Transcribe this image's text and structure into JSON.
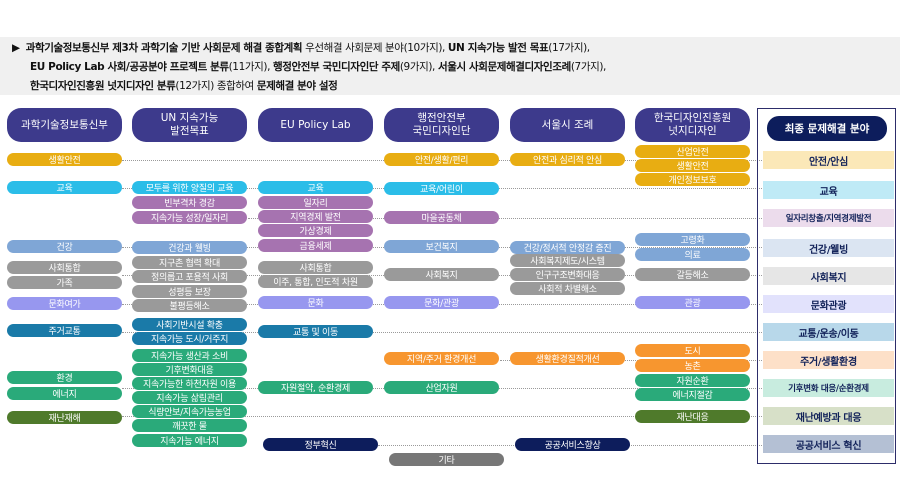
{
  "intro": {
    "bullet": "▶",
    "lines": [
      [
        {
          "t": "과학기술정보통신부 제3차 과학기술 기반 사회문제 해결 종합계획",
          "b": true
        },
        {
          "t": " 우선해결 사회문제 분야(10가지), ",
          "b": false
        },
        {
          "t": "UN 지속가능 발전 목표",
          "b": true
        },
        {
          "t": "(17가지),",
          "b": false
        }
      ],
      [
        {
          "t": "EU Policy Lab 사회/공공분야 프로젝트 분류",
          "b": true
        },
        {
          "t": "(11가지), ",
          "b": false
        },
        {
          "t": "행정안전부 국민디자인단 주제",
          "b": true
        },
        {
          "t": "(9가지), ",
          "b": false
        },
        {
          "t": "서울시 사회문제해결디자인조례",
          "b": true
        },
        {
          "t": "(7가지),",
          "b": false
        }
      ],
      [
        {
          "t": "한국디자인진흥원 넛지디자인 분류",
          "b": true
        },
        {
          "t": "(12가지) 종합하여 ",
          "b": false
        },
        {
          "t": "문제해결 분야 설정",
          "b": true
        }
      ]
    ]
  },
  "palette": {
    "safety": "#e8ad12",
    "edu": "#2bbde8",
    "job": "#a673b0",
    "health": "#7fa6d6",
    "welfare": "#9a9a9a",
    "culture": "#9797ef",
    "traffic": "#1a7aa8",
    "housing": "#f7962f",
    "climate": "#2aaa7a",
    "disaster": "#4f7a2b",
    "public": "#0d1d5c",
    "etc": "#777777",
    "header": "#3d3a8c"
  },
  "columns": [
    {
      "header": "과학기술정보통신부",
      "items": [
        {
          "label": "생활안전",
          "c": "safety"
        },
        {
          "label": "교육",
          "c": "edu"
        },
        {
          "label": "건강",
          "c": "health"
        },
        {
          "label": "사회통합",
          "c": "welfare"
        },
        {
          "label": "가족",
          "c": "welfare"
        },
        {
          "label": "문화여가",
          "c": "culture"
        },
        {
          "label": "주거교통",
          "c": "traffic"
        },
        {
          "label": "환경",
          "c": "climate"
        },
        {
          "label": "에너지",
          "c": "climate"
        },
        {
          "label": "재난재해",
          "c": "disaster"
        }
      ]
    },
    {
      "header": "UN 지속가능\n발전목표",
      "items": [
        {
          "label": "모두를 위한 양질의 교육",
          "c": "edu"
        },
        {
          "label": "빈부격차 경감",
          "c": "job"
        },
        {
          "label": "지속가능 성장/일자리",
          "c": "job"
        },
        {
          "label": "건강과 웰빙",
          "c": "health"
        },
        {
          "label": "지구촌 협력 확대",
          "c": "welfare"
        },
        {
          "label": "정의롭고 포용적 사회",
          "c": "welfare"
        },
        {
          "label": "성평등 보장",
          "c": "welfare"
        },
        {
          "label": "불평등해소",
          "c": "welfare"
        },
        {
          "label": "사회기반시설 확충",
          "c": "traffic"
        },
        {
          "label": "지속가능 도시/거주지",
          "c": "traffic"
        },
        {
          "label": "지속가능 생산과 소비",
          "c": "climate"
        },
        {
          "label": "기후변화대응",
          "c": "climate"
        },
        {
          "label": "지속가능한 하천자원 이용",
          "c": "climate"
        },
        {
          "label": "지속가능 삶림관리",
          "c": "climate"
        },
        {
          "label": "식량안보/지속가능농업",
          "c": "climate"
        },
        {
          "label": "깨끗한 물",
          "c": "climate"
        },
        {
          "label": "지속가능 에너지",
          "c": "climate"
        }
      ]
    },
    {
      "header": "EU Policy Lab",
      "items": [
        {
          "label": "교육",
          "c": "edu"
        },
        {
          "label": "일자리",
          "c": "job"
        },
        {
          "label": "지역경제 발전",
          "c": "job"
        },
        {
          "label": "가상경제",
          "c": "job"
        },
        {
          "label": "금융세제",
          "c": "job"
        },
        {
          "label": "사회통합",
          "c": "welfare"
        },
        {
          "label": "이주, 통합, 인도적 차원",
          "c": "welfare"
        },
        {
          "label": "문화",
          "c": "culture"
        },
        {
          "label": "교통 및 이동",
          "c": "traffic"
        },
        {
          "label": "자원절약, 순환경제",
          "c": "climate"
        },
        {
          "label": "정부혁신",
          "c": "public"
        }
      ]
    },
    {
      "header": "행전안전부\n국민디자인단",
      "items": [
        {
          "label": "안전/생활/편리",
          "c": "safety"
        },
        {
          "label": "교육/어린이",
          "c": "edu"
        },
        {
          "label": "마을공동체",
          "c": "job"
        },
        {
          "label": "보건복지",
          "c": "health"
        },
        {
          "label": "사회복지",
          "c": "welfare"
        },
        {
          "label": "문화/관광",
          "c": "culture"
        },
        {
          "label": "지역/주거 환경개선",
          "c": "housing"
        },
        {
          "label": "산업자원",
          "c": "climate"
        },
        {
          "label": "기타",
          "c": "etc"
        }
      ]
    },
    {
      "header": "서울시 조례",
      "items": [
        {
          "label": "안전과 심리적 안심",
          "c": "safety"
        },
        {
          "label": "건강/정서적 안정감 증진",
          "c": "health"
        },
        {
          "label": "사회복지제도/시스템",
          "c": "welfare"
        },
        {
          "label": "인구구조변화대응",
          "c": "welfare"
        },
        {
          "label": "사회적 차별해소",
          "c": "welfare"
        },
        {
          "label": "생활환경질적개선",
          "c": "housing"
        },
        {
          "label": "공공서비스향상",
          "c": "public"
        }
      ]
    },
    {
      "header": "한국디자인진흥원\n넛지디자인",
      "items": [
        {
          "label": "산업안전",
          "c": "safety"
        },
        {
          "label": "생활안전",
          "c": "safety"
        },
        {
          "label": "개인정보보호",
          "c": "safety"
        },
        {
          "label": "고령화",
          "c": "health"
        },
        {
          "label": "의료",
          "c": "health"
        },
        {
          "label": "갈등해소",
          "c": "welfare"
        },
        {
          "label": "관광",
          "c": "culture"
        },
        {
          "label": "도시",
          "c": "housing"
        },
        {
          "label": "농촌",
          "c": "housing"
        },
        {
          "label": "자원순환",
          "c": "climate"
        },
        {
          "label": "에너지절감",
          "c": "climate"
        },
        {
          "label": "재난대응",
          "c": "disaster"
        }
      ]
    }
  ],
  "final": {
    "header": "최종 문제해결 분야",
    "items": [
      {
        "label": "안전/안심",
        "bg": "#fbe8b8"
      },
      {
        "label": "교육",
        "bg": "#bfeaf6"
      },
      {
        "label": "일자리창출/지역경제발전",
        "bg": "#ecdcec"
      },
      {
        "label": "건강/웰빙",
        "bg": "#dbe5f2"
      },
      {
        "label": "사회복지",
        "bg": "#e6e6e6"
      },
      {
        "label": "문화관광",
        "bg": "#e2e2fc"
      },
      {
        "label": "교통/운송/이동",
        "bg": "#b8d8ea"
      },
      {
        "label": "주거/생활환경",
        "bg": "#fde0c8"
      },
      {
        "label": "기후변화 대응/순환경제",
        "bg": "#c8ecdf"
      },
      {
        "label": "재난예방과 대응",
        "bg": "#d7e0c8"
      },
      {
        "label": "공공서비스 혁신",
        "bg": "#b4c0d4"
      }
    ]
  }
}
